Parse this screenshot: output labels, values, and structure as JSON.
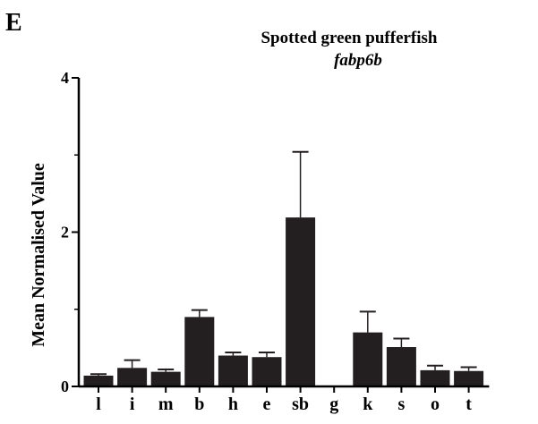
{
  "panel_label": "E",
  "chart_data": {
    "type": "bar",
    "title": "Spotted green pufferfish",
    "subtitle": "fabp6b",
    "xlabel": "",
    "ylabel": "Mean Normalised Value",
    "ylim": [
      0,
      4
    ],
    "yticks": [
      0,
      2,
      4
    ],
    "grid": false,
    "categories": [
      "l",
      "i",
      "m",
      "b",
      "h",
      "e",
      "sb",
      "g",
      "k",
      "s",
      "o",
      "t"
    ],
    "values": [
      0.14,
      0.24,
      0.19,
      0.9,
      0.4,
      0.38,
      2.19,
      0.01,
      0.7,
      0.51,
      0.21,
      0.2
    ],
    "error_upper": [
      0.02,
      0.1,
      0.03,
      0.09,
      0.04,
      0.06,
      0.85,
      0.0,
      0.27,
      0.11,
      0.06,
      0.05
    ],
    "bar_color": "#231f20"
  }
}
